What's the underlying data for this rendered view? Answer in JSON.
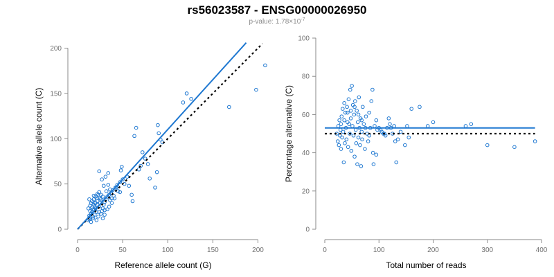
{
  "header": {
    "title": "rs56023587 - ENSG00000026950",
    "pvalue_prefix": "p-value: 1.78×10",
    "pvalue_exponent": "-7"
  },
  "colors": {
    "points": "#1f78d1",
    "fit_line": "#1f78d1",
    "reference_line": "#000000",
    "axis": "#8a8a8a"
  },
  "chart_data": [
    {
      "type": "scatter",
      "xlabel": "Reference allele count (G)",
      "ylabel": "Alternative allele count (C)",
      "xlim": [
        0,
        205
      ],
      "ylim": [
        0,
        205
      ],
      "xticks": [
        "0",
        "50",
        "100",
        "150",
        "200"
      ],
      "yticks": [
        "0",
        "50",
        "100",
        "150",
        "200"
      ],
      "fit_line": {
        "x": [
          0,
          187
        ],
        "y": [
          0,
          206
        ]
      },
      "reference_line": {
        "x": [
          0,
          205
        ],
        "y": [
          0,
          205
        ]
      },
      "points": [
        [
          12,
          10
        ],
        [
          13,
          11
        ],
        [
          14,
          12
        ],
        [
          13,
          15
        ],
        [
          15,
          17
        ],
        [
          16,
          19
        ],
        [
          17,
          14
        ],
        [
          18,
          21
        ],
        [
          19,
          16
        ],
        [
          20,
          23
        ],
        [
          21,
          19
        ],
        [
          14,
          26
        ],
        [
          15,
          29
        ],
        [
          13,
          33
        ],
        [
          16,
          31
        ],
        [
          18,
          27
        ],
        [
          20,
          29
        ],
        [
          22,
          31
        ],
        [
          24,
          25
        ],
        [
          25,
          29
        ],
        [
          26,
          33
        ],
        [
          27,
          20
        ],
        [
          28,
          23
        ],
        [
          29,
          27
        ],
        [
          30,
          30
        ],
        [
          31,
          33
        ],
        [
          33,
          36
        ],
        [
          35,
          38
        ],
        [
          36,
          32
        ],
        [
          37,
          40
        ],
        [
          39,
          43
        ],
        [
          40,
          37
        ],
        [
          42,
          46
        ],
        [
          44,
          49
        ],
        [
          45,
          42
        ],
        [
          47,
          52
        ],
        [
          50,
          55
        ],
        [
          48,
          65
        ],
        [
          49,
          69
        ],
        [
          24,
          64
        ],
        [
          27,
          55
        ],
        [
          31,
          58
        ],
        [
          34,
          62
        ],
        [
          18,
          37
        ],
        [
          20,
          36
        ],
        [
          22,
          39
        ],
        [
          24,
          41
        ],
        [
          29,
          48
        ],
        [
          47,
          41
        ],
        [
          52,
          50
        ],
        [
          55,
          58
        ],
        [
          57,
          48
        ],
        [
          60,
          38
        ],
        [
          61,
          31
        ],
        [
          63,
          103
        ],
        [
          65,
          112
        ],
        [
          68,
          66
        ],
        [
          70,
          70
        ],
        [
          72,
          85
        ],
        [
          75,
          78
        ],
        [
          78,
          72
        ],
        [
          80,
          56
        ],
        [
          86,
          46
        ],
        [
          88,
          63
        ],
        [
          89,
          115
        ],
        [
          90,
          106
        ],
        [
          92,
          99
        ],
        [
          94,
          96
        ],
        [
          117,
          140
        ],
        [
          121,
          150
        ],
        [
          126,
          144
        ],
        [
          168,
          135
        ],
        [
          198,
          154
        ],
        [
          208,
          181
        ],
        [
          17,
          22
        ],
        [
          19,
          25
        ],
        [
          22,
          27
        ],
        [
          23,
          14
        ],
        [
          26,
          17
        ],
        [
          28,
          12
        ],
        [
          30,
          16
        ],
        [
          33,
          22
        ],
        [
          35,
          25
        ],
        [
          38,
          29
        ],
        [
          41,
          34
        ],
        [
          43,
          46
        ],
        [
          12,
          23
        ],
        [
          14,
          20
        ],
        [
          16,
          24
        ],
        [
          18,
          33
        ],
        [
          19,
          29
        ],
        [
          21,
          34
        ],
        [
          23,
          38
        ],
        [
          25,
          34
        ],
        [
          26,
          38
        ],
        [
          28,
          36
        ],
        [
          32,
          42
        ],
        [
          36,
          44
        ],
        [
          38,
          34
        ],
        [
          34,
          49
        ],
        [
          15,
          8
        ],
        [
          17,
          12
        ],
        [
          21,
          10
        ],
        [
          24,
          19
        ],
        [
          30,
          21
        ]
      ]
    },
    {
      "type": "scatter",
      "xlabel": "Total number of reads",
      "ylabel": "Percentage alternative (C)",
      "xlim": [
        0,
        400
      ],
      "ylim": [
        0,
        100
      ],
      "xticks": [
        "0",
        "100",
        "200",
        "300",
        "400"
      ],
      "yticks": [
        "0",
        "20",
        "40",
        "60",
        "80",
        "100"
      ],
      "fit_line": {
        "x": [
          0,
          388
        ],
        "y": [
          53,
          53
        ]
      },
      "reference_line": {
        "x": [
          0,
          388
        ],
        "y": [
          50,
          50
        ]
      },
      "points": [
        [
          22,
          50
        ],
        [
          24,
          46
        ],
        [
          25,
          54
        ],
        [
          26,
          44
        ],
        [
          27,
          57
        ],
        [
          28,
          49
        ],
        [
          29,
          52
        ],
        [
          30,
          42
        ],
        [
          31,
          59
        ],
        [
          32,
          48
        ],
        [
          33,
          63
        ],
        [
          34,
          51
        ],
        [
          35,
          35
        ],
        [
          36,
          66
        ],
        [
          37,
          45
        ],
        [
          38,
          61
        ],
        [
          39,
          53
        ],
        [
          40,
          47
        ],
        [
          41,
          64
        ],
        [
          42,
          56
        ],
        [
          43,
          43
        ],
        [
          44,
          68
        ],
        [
          45,
          55
        ],
        [
          46,
          50
        ],
        [
          47,
          73
        ],
        [
          48,
          58
        ],
        [
          49,
          41
        ],
        [
          50,
          75
        ],
        [
          51,
          54
        ],
        [
          52,
          65
        ],
        [
          53,
          49
        ],
        [
          54,
          60
        ],
        [
          55,
          38
        ],
        [
          56,
          67
        ],
        [
          57,
          52
        ],
        [
          58,
          45
        ],
        [
          59,
          62
        ],
        [
          60,
          34
        ],
        [
          61,
          56
        ],
        [
          62,
          48
        ],
        [
          63,
          69
        ],
        [
          64,
          53
        ],
        [
          65,
          44
        ],
        [
          66,
          58
        ],
        [
          67,
          33
        ],
        [
          68,
          51
        ],
        [
          69,
          47
        ],
        [
          70,
          64
        ],
        [
          72,
          55
        ],
        [
          74,
          42
        ],
        [
          76,
          59
        ],
        [
          78,
          50
        ],
        [
          80,
          46
        ],
        [
          82,
          61
        ],
        [
          84,
          53
        ],
        [
          86,
          67
        ],
        [
          88,
          73
        ],
        [
          89,
          40
        ],
        [
          90,
          34
        ],
        [
          92,
          54
        ],
        [
          95,
          39
        ],
        [
          97,
          52
        ],
        [
          100,
          53
        ],
        [
          105,
          51
        ],
        [
          110,
          50
        ],
        [
          112,
          49
        ],
        [
          115,
          53
        ],
        [
          118,
          58
        ],
        [
          120,
          55
        ],
        [
          125,
          50
        ],
        [
          130,
          46
        ],
        [
          132,
          35
        ],
        [
          135,
          47
        ],
        [
          140,
          51
        ],
        [
          148,
          44
        ],
        [
          152,
          54
        ],
        [
          155,
          48
        ],
        [
          160,
          63
        ],
        [
          175,
          64
        ],
        [
          190,
          54
        ],
        [
          200,
          56
        ],
        [
          260,
          54
        ],
        [
          270,
          55
        ],
        [
          300,
          44
        ],
        [
          350,
          43
        ],
        [
          388,
          46
        ],
        [
          30,
          55
        ],
        [
          36,
          57
        ],
        [
          42,
          61
        ],
        [
          48,
          62
        ],
        [
          55,
          64
        ],
        [
          62,
          60
        ],
        [
          68,
          57
        ],
        [
          75,
          53
        ],
        [
          82,
          49
        ],
        [
          95,
          57
        ],
        [
          103,
          52
        ],
        [
          108,
          50
        ],
        [
          122,
          53
        ],
        [
          128,
          54
        ]
      ]
    }
  ]
}
